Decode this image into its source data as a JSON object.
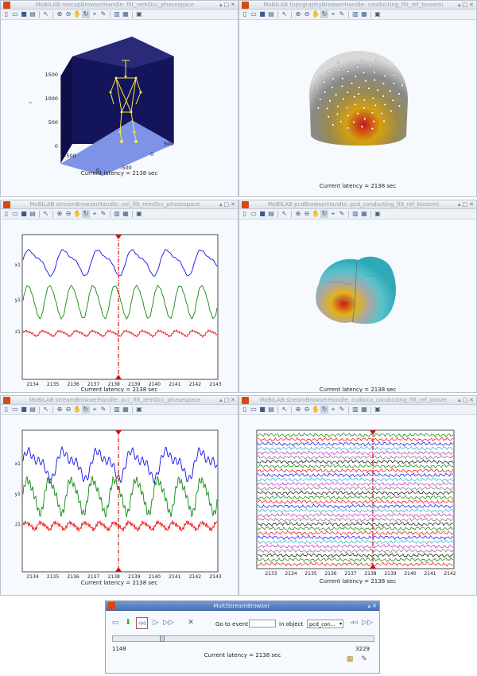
{
  "windows": {
    "mocap": {
      "title": "MoBILAB mocapBrowserHandle: filt_remOcc_phasespace",
      "latency": "Current latency = 2138 sec",
      "z_ticks": [
        "1500",
        "1000",
        "500",
        "0"
      ],
      "x_ticks": [
        "-500",
        "0"
      ],
      "y_ticks": [
        "500",
        "0",
        "-500"
      ],
      "z_label": "~"
    },
    "topo": {
      "title": "MoBILAB topographyBrowserHandle: conducting_filt_ref_biosemi",
      "latency": "Current latency = 2138 sec"
    },
    "vel": {
      "title": "MoBILAB streamBrowserHandle: vel_filt_remOcc_phasespace",
      "latency": "Current latency = 2138 sec",
      "y_ticks": [
        "z1",
        "y1",
        "x1"
      ],
      "x_ticks": [
        "2134",
        "2135",
        "2136",
        "2137",
        "2138",
        "2139",
        "2140",
        "2141",
        "2142",
        "2143"
      ]
    },
    "pcd": {
      "title": "MoBILAB pcdBrowserHandle: pcd_conducting_filt_ref_biosemi",
      "latency": "Current latency = 2138 sec"
    },
    "acc": {
      "title": "MoBILAB streamBrowserHandle: acc_filt_remOcc_phasespace",
      "latency": "Current latency = 2138 sec",
      "y_ticks": [
        "z1",
        "y1",
        "x1"
      ],
      "x_ticks": [
        "2134",
        "2135",
        "2136",
        "2137",
        "2138",
        "2139",
        "2140",
        "2141",
        "2142",
        "2143"
      ]
    },
    "ica": {
      "title": "MoBILAB streamBrowserHandle: cudaica_conducting_filt_ref_bioser",
      "latency": "Current latency = 2138 sec",
      "x_ticks": [
        "2133",
        "2134",
        "2135",
        "2136",
        "2137",
        "2138",
        "2139",
        "2140",
        "2141",
        "2142"
      ]
    }
  },
  "multi": {
    "title": "MultiStreamBrowser",
    "goto_label": "Go to event",
    "goto_value": "",
    "in_object_label": "in object",
    "object_value": "pcd_con...",
    "slider_min": "1148",
    "slider_max": "3229",
    "slider_position": 0.18,
    "latency": "Current latency = 2138 sec"
  },
  "colors": {
    "stream_x": "#1010ee",
    "stream_y": "#118811",
    "stream_z": "#ee1111",
    "cursor": "#cc1111",
    "mocap_bg": "#14145a",
    "mocap_floor": "#7f93e6"
  }
}
